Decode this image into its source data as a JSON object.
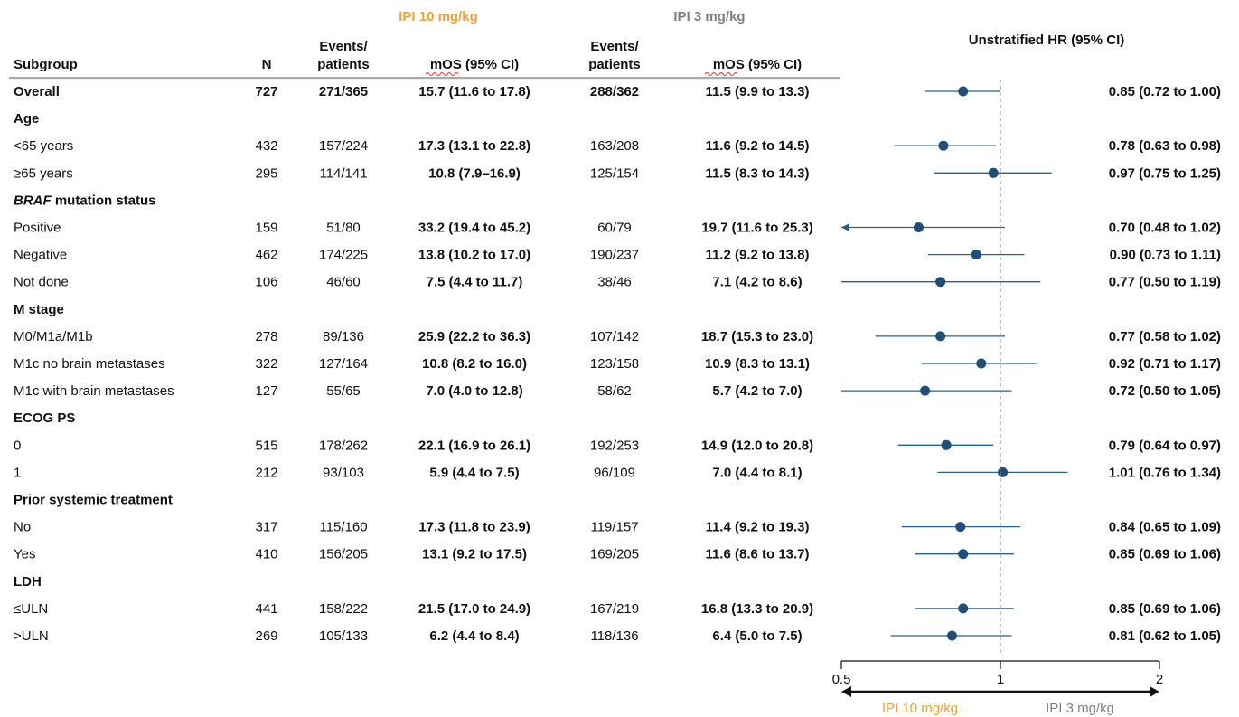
{
  "chart_data": {
    "type": "forest",
    "group_headers": {
      "ipi10": "IPI 10 mg/kg",
      "ipi3": "IPI 3 mg/kg"
    },
    "columns": {
      "subgroup": "Subgroup",
      "n": "N",
      "events_line1": "Events/",
      "events_line2": "patients",
      "mos": "mOS (95% CI)"
    },
    "hr_title": "Unstratified HR (95% CI)",
    "colors": {
      "ipi10": "#e8a33c",
      "ipi3": "#808080",
      "marker": "#1f4e79",
      "line": "#2e5f8a"
    },
    "x_axis": {
      "scale": "log",
      "range": [
        0.5,
        2
      ],
      "ticks": [
        0.5,
        1,
        2
      ],
      "tick_labels": [
        "0.5",
        "1",
        "2"
      ],
      "reference": 1
    },
    "direction_labels": {
      "left": "IPI 10 mg/kg",
      "right": "IPI 3 mg/kg"
    },
    "rows": [
      {
        "type": "data",
        "label": "Overall",
        "bold": true,
        "n": "727",
        "ev10": "271/365",
        "mos10": "15.7 (11.6 to 17.8)",
        "ev3": "288/362",
        "mos3": "11.5 (9.9 to 13.3)",
        "hr": 0.85,
        "lo": 0.72,
        "hi": 1.0,
        "hr_text": "0.85 (0.72 to 1.00)"
      },
      {
        "type": "header",
        "label": "Age"
      },
      {
        "type": "data",
        "label": "<65 years",
        "n": "432",
        "ev10": "157/224",
        "mos10": "17.3 (13.1 to 22.8)",
        "ev3": "163/208",
        "mos3": "11.6 (9.2 to 14.5)",
        "hr": 0.78,
        "lo": 0.63,
        "hi": 0.98,
        "hr_text": "0.78 (0.63 to 0.98)"
      },
      {
        "type": "data",
        "label": "≥65 years",
        "n": "295",
        "ev10": "114/141",
        "mos10": "10.8 (7.9–16.9)",
        "ev3": "125/154",
        "mos3": "11.5 (8.3 to 14.3)",
        "hr": 0.97,
        "lo": 0.75,
        "hi": 1.25,
        "hr_text": "0.97 (0.75 to 1.25)"
      },
      {
        "type": "header",
        "label_italic": "BRAF",
        "label": " mutation status"
      },
      {
        "type": "data",
        "label": "Positive",
        "n": "159",
        "ev10": "51/80",
        "mos10": "33.2 (19.4 to 45.2)",
        "ev3": "60/79",
        "mos3": "19.7 (11.6 to 25.3)",
        "hr": 0.7,
        "lo": 0.48,
        "hi": 1.02,
        "hr_text": "0.70 (0.48 to 1.02)"
      },
      {
        "type": "data",
        "label": "Negative",
        "n": "462",
        "ev10": "174/225",
        "mos10": "13.8 (10.2 to 17.0)",
        "ev3": "190/237",
        "mos3": "11.2 (9.2 to 13.8)",
        "hr": 0.9,
        "lo": 0.73,
        "hi": 1.11,
        "hr_text": "0.90 (0.73 to 1.11)"
      },
      {
        "type": "data",
        "label": "Not done",
        "n": "106",
        "ev10": "46/60",
        "mos10": "7.5 (4.4 to 11.7)",
        "ev3": "38/46",
        "mos3": "7.1 (4.2 to 8.6)",
        "hr": 0.77,
        "lo": 0.5,
        "hi": 1.19,
        "hr_text": "0.77 (0.50 to 1.19)"
      },
      {
        "type": "header",
        "label": "M stage"
      },
      {
        "type": "data",
        "label": "M0/M1a/M1b",
        "n": "278",
        "ev10": "89/136",
        "mos10": "25.9 (22.2 to 36.3)",
        "ev3": "107/142",
        "mos3": "18.7 (15.3 to 23.0)",
        "hr": 0.77,
        "lo": 0.58,
        "hi": 1.02,
        "hr_text": "0.77 (0.58 to 1.02)"
      },
      {
        "type": "data",
        "label": "M1c no brain metastases",
        "n": "322",
        "ev10": "127/164",
        "mos10": "10.8 (8.2 to 16.0)",
        "ev3": "123/158",
        "mos3": "10.9 (8.3 to 13.1)",
        "hr": 0.92,
        "lo": 0.71,
        "hi": 1.17,
        "hr_text": "0.92 (0.71 to 1.17)"
      },
      {
        "type": "data",
        "label": "M1c with brain metastases",
        "n": "127",
        "ev10": "55/65",
        "mos10": "7.0 (4.0 to 12.8)",
        "ev3": "58/62",
        "mos3": "5.7 (4.2 to 7.0)",
        "hr": 0.72,
        "lo": 0.5,
        "hi": 1.05,
        "hr_text": "0.72 (0.50 to 1.05)"
      },
      {
        "type": "header",
        "label": "ECOG PS"
      },
      {
        "type": "data",
        "label": "0",
        "n": "515",
        "ev10": "178/262",
        "mos10": "22.1 (16.9 to 26.1)",
        "ev3": "192/253",
        "mos3": "14.9 (12.0 to 20.8)",
        "hr": 0.79,
        "lo": 0.64,
        "hi": 0.97,
        "hr_text": "0.79 (0.64 to 0.97)"
      },
      {
        "type": "data",
        "label": "1",
        "n": "212",
        "ev10": "93/103",
        "mos10": "5.9 (4.4 to 7.5)",
        "ev3": "96/109",
        "mos3": "7.0 (4.4 to 8.1)",
        "hr": 1.01,
        "lo": 0.76,
        "hi": 1.34,
        "hr_text": "1.01 (0.76 to 1.34)"
      },
      {
        "type": "header",
        "label": "Prior systemic treatment"
      },
      {
        "type": "data",
        "label": "No",
        "n": "317",
        "ev10": "115/160",
        "mos10": "17.3 (11.8 to 23.9)",
        "ev3": "119/157",
        "mos3": "11.4 (9.2 to 19.3)",
        "hr": 0.84,
        "lo": 0.65,
        "hi": 1.09,
        "hr_text": "0.84 (0.65 to 1.09)"
      },
      {
        "type": "data",
        "label": "Yes",
        "n": "410",
        "ev10": "156/205",
        "mos10": "13.1 (9.2 to 17.5)",
        "ev3": "169/205",
        "mos3": "11.6 (8.6 to 13.7)",
        "hr": 0.85,
        "lo": 0.69,
        "hi": 1.06,
        "hr_text": "0.85 (0.69 to 1.06)"
      },
      {
        "type": "header",
        "label": "LDH"
      },
      {
        "type": "data",
        "label": "≤ULN",
        "n": "441",
        "ev10": "158/222",
        "mos10": "21.5 (17.0 to 24.9)",
        "ev3": "167/219",
        "mos3": "16.8 (13.3 to 20.9)",
        "hr": 0.85,
        "lo": 0.69,
        "hi": 1.06,
        "hr_text": "0.85 (0.69 to 1.06)"
      },
      {
        "type": "data",
        "label": ">ULN",
        "n": "269",
        "ev10": "105/133",
        "mos10": "6.2 (4.4 to 8.4)",
        "ev3": "118/136",
        "mos3": "6.4 (5.0 to 7.5)",
        "hr": 0.81,
        "lo": 0.62,
        "hi": 1.05,
        "hr_text": "0.81 (0.62 to 1.05)"
      }
    ]
  }
}
